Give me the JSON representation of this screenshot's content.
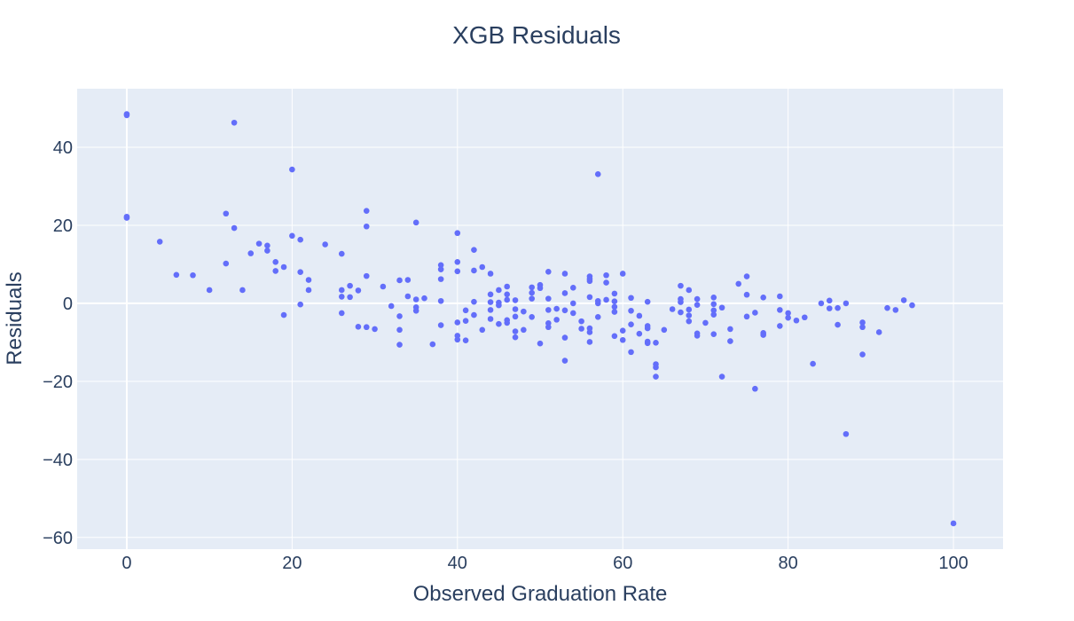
{
  "chart_data": {
    "type": "scatter",
    "title": "XGB Residuals",
    "xlabel": "Observed Graduation Rate",
    "ylabel": "Residuals",
    "xlim": [
      -6,
      106
    ],
    "ylim": [
      -63,
      55
    ],
    "xticks": [
      0,
      20,
      40,
      60,
      80,
      100
    ],
    "yticks": [
      -60,
      -40,
      -20,
      0,
      20,
      40
    ],
    "grid": true,
    "colors": {
      "marker": "#636efa",
      "plot_bg": "#e5ecf6",
      "grid": "#ffffff",
      "text": "#2a3f5f"
    },
    "points": [
      [
        0,
        48.5
      ],
      [
        0,
        48.2
      ],
      [
        0,
        22.2
      ],
      [
        0,
        21.9
      ],
      [
        4,
        15.8
      ],
      [
        6,
        7.3
      ],
      [
        8,
        7.2
      ],
      [
        10,
        3.4
      ],
      [
        12,
        23
      ],
      [
        12,
        10.2
      ],
      [
        13,
        46.3
      ],
      [
        13,
        19.3
      ],
      [
        14,
        3.4
      ],
      [
        15,
        12.8
      ],
      [
        16,
        15.3
      ],
      [
        17,
        14.8
      ],
      [
        17,
        13.5
      ],
      [
        18,
        10.6
      ],
      [
        18,
        8.3
      ],
      [
        19,
        9.3
      ],
      [
        19,
        -3
      ],
      [
        20,
        34.3
      ],
      [
        20,
        17.3
      ],
      [
        21,
        16.3
      ],
      [
        21,
        8
      ],
      [
        21,
        -0.3
      ],
      [
        22,
        6
      ],
      [
        22,
        3.4
      ],
      [
        24,
        15.1
      ],
      [
        26,
        12.7
      ],
      [
        26,
        3.4
      ],
      [
        26,
        1.7
      ],
      [
        26,
        -2.5
      ],
      [
        27,
        4.5
      ],
      [
        27,
        1.6
      ],
      [
        28,
        3.3
      ],
      [
        28,
        -6
      ],
      [
        29,
        23.7
      ],
      [
        29,
        19.7
      ],
      [
        29,
        7
      ],
      [
        29,
        -6.1
      ],
      [
        30,
        -6.6
      ],
      [
        31,
        4.3
      ],
      [
        32,
        -0.7
      ],
      [
        33,
        5.9
      ],
      [
        33,
        -3.3
      ],
      [
        33,
        -6.8
      ],
      [
        33,
        -10.6
      ],
      [
        34,
        6
      ],
      [
        34,
        1.8
      ],
      [
        35,
        20.7
      ],
      [
        35,
        1
      ],
      [
        35,
        -1
      ],
      [
        35,
        -1.9
      ],
      [
        36,
        1.3
      ],
      [
        37,
        -10.5
      ],
      [
        38,
        9.8
      ],
      [
        38,
        8.7
      ],
      [
        38,
        6.2
      ],
      [
        38,
        0.6
      ],
      [
        38,
        -5.6
      ],
      [
        40,
        18
      ],
      [
        40,
        10.6
      ],
      [
        40,
        8.2
      ],
      [
        40,
        -4.9
      ],
      [
        40,
        -8.3
      ],
      [
        40,
        -9.3
      ],
      [
        41,
        -1.8
      ],
      [
        41,
        -4.5
      ],
      [
        41,
        -9.5
      ],
      [
        42,
        13.7
      ],
      [
        42,
        8.4
      ],
      [
        42,
        0.4
      ],
      [
        42,
        -3
      ],
      [
        43,
        9.3
      ],
      [
        43,
        -6.8
      ],
      [
        44,
        7.6
      ],
      [
        44,
        2.3
      ],
      [
        44,
        0.3
      ],
      [
        44,
        -1.7
      ],
      [
        44,
        -4
      ],
      [
        45,
        3.4
      ],
      [
        45,
        0.2
      ],
      [
        45,
        -0.5
      ],
      [
        45,
        -5.3
      ],
      [
        46,
        4.3
      ],
      [
        46,
        2.3
      ],
      [
        46,
        0.9
      ],
      [
        46,
        -4.3
      ],
      [
        46,
        -5
      ],
      [
        47,
        -1.5
      ],
      [
        47,
        -3.4
      ],
      [
        47,
        -7.2
      ],
      [
        47,
        -8.7
      ],
      [
        47,
        0.8
      ],
      [
        48,
        -2.1
      ],
      [
        48,
        -6.8
      ],
      [
        49,
        4.1
      ],
      [
        49,
        2.7
      ],
      [
        49,
        1.2
      ],
      [
        49,
        -3.5
      ],
      [
        50,
        4.7
      ],
      [
        50,
        3.9
      ],
      [
        50,
        -10.3
      ],
      [
        51,
        8.1
      ],
      [
        51,
        1.2
      ],
      [
        51,
        -1.7
      ],
      [
        51,
        -5.1
      ],
      [
        51,
        -6.1
      ],
      [
        52,
        -1.4
      ],
      [
        52,
        -4.2
      ],
      [
        53,
        7.6
      ],
      [
        53,
        2.6
      ],
      [
        53,
        -1.8
      ],
      [
        53,
        -8.8
      ],
      [
        53,
        -14.7
      ],
      [
        54,
        4
      ],
      [
        54,
        0
      ],
      [
        54,
        -2.5
      ],
      [
        55,
        -4.6
      ],
      [
        55,
        -6.5
      ],
      [
        56,
        6.9
      ],
      [
        56,
        6.2
      ],
      [
        56,
        5.7
      ],
      [
        56,
        1.6
      ],
      [
        56,
        -6.4
      ],
      [
        56,
        -7.4
      ],
      [
        56,
        -9.9
      ],
      [
        57,
        33.1
      ],
      [
        57,
        0.6
      ],
      [
        57,
        0
      ],
      [
        57,
        -3.5
      ],
      [
        58,
        7.2
      ],
      [
        58,
        5.3
      ],
      [
        58,
        0.9
      ],
      [
        59,
        2.5
      ],
      [
        59,
        0.5
      ],
      [
        59,
        -0.9
      ],
      [
        59,
        -2.2
      ],
      [
        59,
        -8.4
      ],
      [
        60,
        7.6
      ],
      [
        60,
        -7
      ],
      [
        60,
        -9.4
      ],
      [
        61,
        1.4
      ],
      [
        61,
        -1.9
      ],
      [
        61,
        -5.4
      ],
      [
        61,
        -12.5
      ],
      [
        62,
        -3.2
      ],
      [
        62,
        -7.8
      ],
      [
        63,
        0.4
      ],
      [
        63,
        -5.8
      ],
      [
        63,
        -6.4
      ],
      [
        63,
        -9.8
      ],
      [
        63,
        -10.2
      ],
      [
        64,
        -10.1
      ],
      [
        64,
        -15.6
      ],
      [
        64,
        -16.4
      ],
      [
        64,
        -18.8
      ],
      [
        65,
        -6.8
      ],
      [
        66,
        -1.5
      ],
      [
        67,
        4.5
      ],
      [
        67,
        1.1
      ],
      [
        67,
        0.3
      ],
      [
        67,
        -2.3
      ],
      [
        68,
        3.4
      ],
      [
        68,
        -1.6
      ],
      [
        68,
        -3.1
      ],
      [
        68,
        -4.6
      ],
      [
        69,
        1.1
      ],
      [
        69,
        -0.4
      ],
      [
        69,
        -7.7
      ],
      [
        69,
        -8.3
      ],
      [
        70,
        -5
      ],
      [
        71,
        1.5
      ],
      [
        71,
        -0.2
      ],
      [
        71,
        -1.8
      ],
      [
        71,
        -2.9
      ],
      [
        71,
        -7.9
      ],
      [
        72,
        -1.1
      ],
      [
        72,
        -18.8
      ],
      [
        73,
        -6.6
      ],
      [
        73,
        -9.7
      ],
      [
        74,
        5
      ],
      [
        75,
        6.9
      ],
      [
        75,
        2.2
      ],
      [
        75,
        -3.4
      ],
      [
        76,
        -2.4
      ],
      [
        76,
        -21.9
      ],
      [
        77,
        -7.6
      ],
      [
        77,
        -8.1
      ],
      [
        77,
        1.5
      ],
      [
        79,
        1.8
      ],
      [
        79,
        -1.7
      ],
      [
        79,
        -5.8
      ],
      [
        80,
        -2.5
      ],
      [
        80,
        -3.7
      ],
      [
        81,
        -4.4
      ],
      [
        82,
        -3.6
      ],
      [
        83,
        -15.5
      ],
      [
        84,
        0
      ],
      [
        85,
        0.7
      ],
      [
        85,
        -1.3
      ],
      [
        86,
        -1.2
      ],
      [
        86,
        -5.5
      ],
      [
        87,
        0
      ],
      [
        87,
        -33.5
      ],
      [
        89,
        -4.9
      ],
      [
        89,
        -6.1
      ],
      [
        89,
        -13.1
      ],
      [
        91,
        -7.4
      ],
      [
        92,
        -1.2
      ],
      [
        93,
        -1.7
      ],
      [
        94,
        0.8
      ],
      [
        95,
        -0.5
      ],
      [
        100,
        -56.4
      ]
    ]
  }
}
